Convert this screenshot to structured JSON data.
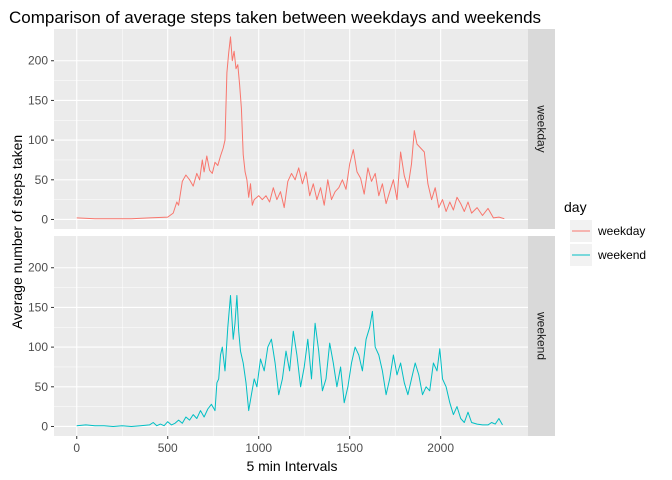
{
  "chart_data": {
    "type": "line",
    "title": "Comparison of average steps taken between weekdays and weekends",
    "xlabel": "5 min Intervals",
    "ylabel": "Average number of steps taken",
    "xlim": [
      -125,
      2480
    ],
    "ylim": [
      -12,
      240
    ],
    "x_ticks": [
      0,
      500,
      1000,
      1500,
      2000
    ],
    "x_tick_labels": [
      "0",
      "500",
      "1000",
      "1500",
      "2000"
    ],
    "y_ticks": [
      0,
      50,
      100,
      150,
      200
    ],
    "y_tick_labels": [
      "0",
      "50",
      "100",
      "150",
      "200"
    ],
    "grid": true,
    "facet_by": "day",
    "legend": {
      "title": "day",
      "position": "right",
      "entries": [
        "weekday",
        "weekend"
      ]
    },
    "panels": [
      {
        "label": "weekday",
        "color": "#F8766D",
        "points": [
          [
            0,
            2
          ],
          [
            100,
            1
          ],
          [
            200,
            1
          ],
          [
            300,
            1
          ],
          [
            400,
            2
          ],
          [
            500,
            3
          ],
          [
            530,
            8
          ],
          [
            550,
            22
          ],
          [
            560,
            18
          ],
          [
            580,
            48
          ],
          [
            600,
            56
          ],
          [
            620,
            50
          ],
          [
            640,
            42
          ],
          [
            660,
            58
          ],
          [
            675,
            50
          ],
          [
            690,
            75
          ],
          [
            700,
            60
          ],
          [
            715,
            80
          ],
          [
            730,
            62
          ],
          [
            745,
            58
          ],
          [
            760,
            72
          ],
          [
            775,
            68
          ],
          [
            790,
            80
          ],
          [
            805,
            90
          ],
          [
            815,
            100
          ],
          [
            825,
            185
          ],
          [
            835,
            210
          ],
          [
            845,
            230
          ],
          [
            855,
            200
          ],
          [
            865,
            212
          ],
          [
            875,
            190
          ],
          [
            885,
            195
          ],
          [
            895,
            170
          ],
          [
            905,
            140
          ],
          [
            915,
            82
          ],
          [
            925,
            60
          ],
          [
            935,
            50
          ],
          [
            945,
            28
          ],
          [
            955,
            45
          ],
          [
            965,
            18
          ],
          [
            975,
            25
          ],
          [
            1000,
            30
          ],
          [
            1020,
            25
          ],
          [
            1040,
            30
          ],
          [
            1060,
            22
          ],
          [
            1080,
            40
          ],
          [
            1100,
            25
          ],
          [
            1120,
            35
          ],
          [
            1140,
            15
          ],
          [
            1160,
            48
          ],
          [
            1180,
            58
          ],
          [
            1200,
            50
          ],
          [
            1220,
            65
          ],
          [
            1240,
            45
          ],
          [
            1260,
            60
          ],
          [
            1280,
            30
          ],
          [
            1300,
            45
          ],
          [
            1320,
            25
          ],
          [
            1340,
            40
          ],
          [
            1360,
            18
          ],
          [
            1380,
            50
          ],
          [
            1400,
            25
          ],
          [
            1420,
            35
          ],
          [
            1440,
            40
          ],
          [
            1460,
            50
          ],
          [
            1480,
            38
          ],
          [
            1500,
            70
          ],
          [
            1520,
            88
          ],
          [
            1540,
            60
          ],
          [
            1560,
            52
          ],
          [
            1580,
            32
          ],
          [
            1600,
            65
          ],
          [
            1620,
            48
          ],
          [
            1640,
            58
          ],
          [
            1660,
            30
          ],
          [
            1680,
            45
          ],
          [
            1700,
            20
          ],
          [
            1720,
            35
          ],
          [
            1740,
            50
          ],
          [
            1760,
            25
          ],
          [
            1780,
            85
          ],
          [
            1800,
            55
          ],
          [
            1820,
            40
          ],
          [
            1840,
            70
          ],
          [
            1855,
            112
          ],
          [
            1870,
            95
          ],
          [
            1890,
            90
          ],
          [
            1910,
            85
          ],
          [
            1930,
            45
          ],
          [
            1950,
            25
          ],
          [
            1970,
            40
          ],
          [
            1990,
            15
          ],
          [
            2010,
            25
          ],
          [
            2030,
            10
          ],
          [
            2050,
            22
          ],
          [
            2070,
            12
          ],
          [
            2090,
            28
          ],
          [
            2110,
            20
          ],
          [
            2130,
            10
          ],
          [
            2150,
            22
          ],
          [
            2170,
            8
          ],
          [
            2200,
            15
          ],
          [
            2230,
            5
          ],
          [
            2260,
            14
          ],
          [
            2290,
            2
          ],
          [
            2320,
            3
          ],
          [
            2350,
            1
          ]
        ]
      },
      {
        "label": "weekend",
        "color": "#00BFC4",
        "points": [
          [
            0,
            1
          ],
          [
            50,
            2
          ],
          [
            100,
            1
          ],
          [
            150,
            1
          ],
          [
            200,
            0
          ],
          [
            250,
            1
          ],
          [
            300,
            0
          ],
          [
            350,
            1
          ],
          [
            400,
            2
          ],
          [
            420,
            5
          ],
          [
            440,
            1
          ],
          [
            460,
            3
          ],
          [
            480,
            1
          ],
          [
            500,
            6
          ],
          [
            520,
            2
          ],
          [
            540,
            4
          ],
          [
            560,
            8
          ],
          [
            580,
            4
          ],
          [
            600,
            12
          ],
          [
            620,
            8
          ],
          [
            640,
            15
          ],
          [
            660,
            10
          ],
          [
            680,
            20
          ],
          [
            700,
            12
          ],
          [
            720,
            22
          ],
          [
            740,
            28
          ],
          [
            760,
            20
          ],
          [
            770,
            55
          ],
          [
            780,
            60
          ],
          [
            790,
            90
          ],
          [
            800,
            100
          ],
          [
            815,
            70
          ],
          [
            830,
            125
          ],
          [
            845,
            165
          ],
          [
            860,
            110
          ],
          [
            870,
            130
          ],
          [
            880,
            165
          ],
          [
            890,
            120
          ],
          [
            900,
            95
          ],
          [
            915,
            80
          ],
          [
            930,
            55
          ],
          [
            945,
            20
          ],
          [
            960,
            40
          ],
          [
            975,
            60
          ],
          [
            990,
            50
          ],
          [
            1010,
            85
          ],
          [
            1030,
            70
          ],
          [
            1050,
            100
          ],
          [
            1070,
            110
          ],
          [
            1090,
            80
          ],
          [
            1110,
            40
          ],
          [
            1130,
            60
          ],
          [
            1150,
            95
          ],
          [
            1170,
            70
          ],
          [
            1190,
            120
          ],
          [
            1210,
            90
          ],
          [
            1230,
            50
          ],
          [
            1250,
            75
          ],
          [
            1270,
            110
          ],
          [
            1290,
            60
          ],
          [
            1310,
            130
          ],
          [
            1330,
            95
          ],
          [
            1350,
            45
          ],
          [
            1370,
            60
          ],
          [
            1390,
            105
          ],
          [
            1410,
            80
          ],
          [
            1430,
            50
          ],
          [
            1450,
            75
          ],
          [
            1470,
            30
          ],
          [
            1490,
            50
          ],
          [
            1510,
            80
          ],
          [
            1530,
            100
          ],
          [
            1550,
            90
          ],
          [
            1570,
            70
          ],
          [
            1590,
            110
          ],
          [
            1610,
            125
          ],
          [
            1625,
            145
          ],
          [
            1640,
            100
          ],
          [
            1660,
            90
          ],
          [
            1680,
            70
          ],
          [
            1700,
            40
          ],
          [
            1720,
            60
          ],
          [
            1740,
            90
          ],
          [
            1760,
            65
          ],
          [
            1780,
            80
          ],
          [
            1800,
            55
          ],
          [
            1820,
            40
          ],
          [
            1840,
            60
          ],
          [
            1860,
            80
          ],
          [
            1880,
            65
          ],
          [
            1900,
            40
          ],
          [
            1920,
            50
          ],
          [
            1940,
            45
          ],
          [
            1960,
            80
          ],
          [
            1980,
            70
          ],
          [
            1995,
            98
          ],
          [
            2010,
            60
          ],
          [
            2030,
            50
          ],
          [
            2050,
            30
          ],
          [
            2070,
            15
          ],
          [
            2090,
            25
          ],
          [
            2110,
            10
          ],
          [
            2130,
            5
          ],
          [
            2150,
            18
          ],
          [
            2170,
            5
          ],
          [
            2200,
            3
          ],
          [
            2230,
            2
          ],
          [
            2260,
            2
          ],
          [
            2280,
            5
          ],
          [
            2300,
            3
          ],
          [
            2320,
            10
          ],
          [
            2340,
            2
          ]
        ]
      }
    ]
  }
}
